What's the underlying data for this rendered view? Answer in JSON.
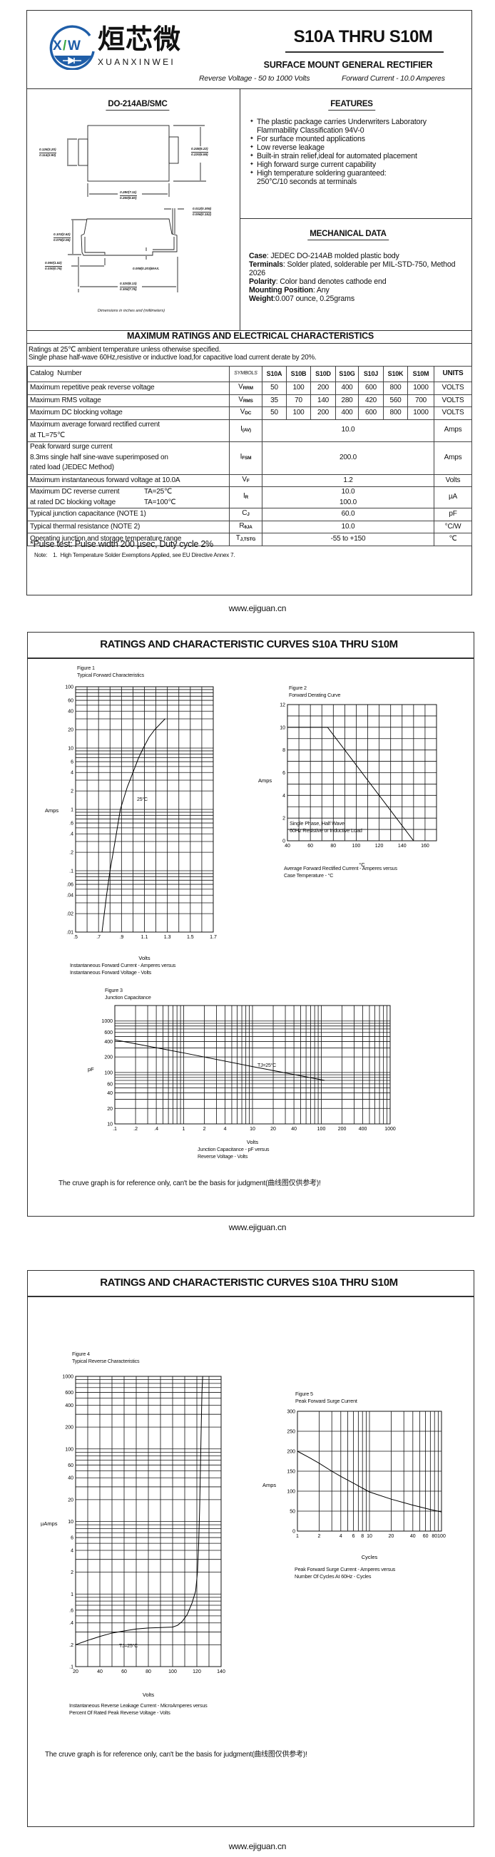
{
  "page1": {
    "logo": {
      "brand_cn": "烜芯微",
      "brand_en": "XUANXINWEI",
      "mark": "XW",
      "colors": {
        "blue": "#1f5ea8",
        "green": "#3aa845"
      }
    },
    "title": "S10A THRU S10M",
    "subtitle": "SURFACE MOUNT GENERAL RECTIFIER",
    "reverse_voltage": "Reverse Voltage - 50 to 1000 Volts",
    "forward_current": "Forward Current - 10.0 Amperes",
    "package": {
      "title": "DO-214AB/SMC",
      "dims": [
        [
          "0.126(3.20)",
          "0.114(2.90)"
        ],
        [
          "0.245(6.22)",
          "0.220(5.59)"
        ],
        [
          "0.280(7.11)",
          "0.260(6.60)"
        ],
        [
          "0.012(0.305)",
          "0.006(0.152)"
        ],
        [
          "0.103(2.62)",
          "0.079(2.06)"
        ],
        [
          "0.060(1.52)",
          "0.030(0.76)"
        ],
        [
          "0.320(8.13)",
          "0.305(7.75)"
        ]
      ],
      "dim_max": "0.008(0.203)MAX.",
      "note": "Dimensions in inches and (millimeters)"
    },
    "features": {
      "title": "FEATURES",
      "items": [
        "The plastic package carries Underwriters Laboratory\nFlammability Classification 94V-0",
        "For surface mounted applications",
        "Low reverse leakage",
        "Built-in strain relief,ideal for automated placement",
        "High forward surge current capability",
        "High temperature soldering guaranteed:\n250°C/10 seconds at terminals"
      ]
    },
    "mechanical": {
      "title": "MECHANICAL DATA",
      "items": [
        {
          "label": "Case",
          "value": ": JEDEC DO-214AB molded plastic body"
        },
        {
          "label": "Terminals",
          "value": ": Solder plated, solderable per MIL-STD-750, Method 2026"
        },
        {
          "label": "Polarity",
          "value": ": Color band denotes cathode end"
        },
        {
          "label": "Mounting Position",
          "value": ": Any"
        },
        {
          "label": "Weight",
          "value": ":0.007 ounce, 0.25grams"
        }
      ]
    },
    "ratings": {
      "title": "MAXIMUM RATINGS AND ELECTRICAL CHARACTERISTICS",
      "notes": [
        "Ratings at 25℃ ambient temperature unless otherwise specified.",
        "Single phase half-wave 60Hz,resistive or inductive load,for capacitive load current derate by 20%."
      ],
      "header": {
        "catalog": "Catalog  Number",
        "symbols": "SYMBOLS",
        "parts": [
          "S10A",
          "S10B",
          "S10D",
          "S10G",
          "S10J",
          "S10K",
          "S10M"
        ],
        "units": "UNITS"
      },
      "rows": [
        {
          "desc": [
            "Maximum repetitive peak reverse voltage"
          ],
          "sym": "V",
          "sub": "RRM",
          "values": [
            "50",
            "100",
            "200",
            "400",
            "600",
            "800",
            "1000"
          ],
          "unit": "VOLTS"
        },
        {
          "desc": [
            "Maximum RMS voltage"
          ],
          "sym": "V",
          "sub": "RMS",
          "values": [
            "35",
            "70",
            "140",
            "280",
            "420",
            "560",
            "700"
          ],
          "unit": "VOLTS"
        },
        {
          "desc": [
            "Maximum DC blocking voltage"
          ],
          "sym": "V",
          "sub": "DC",
          "values": [
            "50",
            "100",
            "200",
            "400",
            "600",
            "800",
            "1000"
          ],
          "unit": "VOLTS"
        },
        {
          "desc": [
            "Maximum average forward rectified current",
            "at TL=75℃"
          ],
          "sym": "I",
          "sub": "(AV)",
          "value": "10.0",
          "unit": "Amps"
        },
        {
          "desc": [
            "Peak forward surge current",
            "8.3ms single half sine-wave superimposed on",
            "rated load (JEDEC Method)"
          ],
          "sym": "I",
          "sub": "FSM",
          "value": "200.0",
          "unit": "Amps"
        },
        {
          "desc": [
            "Maximum instantaneous forward voltage at 10.0A"
          ],
          "sym": "V",
          "sub": "F",
          "value": "1.2",
          "unit": "Volts"
        },
        {
          "desc": [
            "Maximum DC reverse current",
            "at rated DC blocking voltage"
          ],
          "cond": [
            "TA=25℃",
            "TA=100℃"
          ],
          "sym": "I",
          "sub": "R",
          "value": "10.0\n100.0",
          "unit": "µA"
        },
        {
          "desc": [
            "Typical junction capacitance (NOTE 1)"
          ],
          "sym": "C",
          "sub": "J",
          "value": "60.0",
          "unit": "pF"
        },
        {
          "desc": [
            "Typical thermal resistance (NOTE 2)"
          ],
          "sym": "R",
          "sub": "θJA",
          "value": "10.0",
          "unit": "°C/W"
        },
        {
          "desc": [
            "Operating junction and storage temperature range"
          ],
          "sym": "T",
          "sub": "J,TSTG",
          "value": "-55 to +150",
          "unit": "℃"
        }
      ],
      "pulse_note": "*Pulse test: Pulse width 200 µsec, Duty cycle 2%",
      "note": "Note:    1.  High Temperature Solder Exemptions Applied, see EU Directive Annex 7."
    }
  },
  "footer_url": "www.ejiguan.cn",
  "curves_title": "RATINGS AND CHARACTERISTIC CURVES S10A THRU S10M",
  "disclaimer": "The cruve graph is for reference only, can't be the basis for judgment(曲线图仅供参考)!",
  "chart_data": [
    {
      "type": "line",
      "figure": "Figure 1",
      "title": "Typical Forward Characteristics",
      "xlabel": "Volts",
      "ylabel": "Amps",
      "xscale": "linear",
      "yscale": "log",
      "xlim": [
        0.5,
        1.7
      ],
      "ylim": [
        0.01,
        100
      ],
      "grid": true,
      "xticks": [
        ".5",
        ".7",
        ".9",
        "1.1",
        "1.3",
        "1.5",
        "1.7"
      ],
      "yticks": [
        "100",
        "60",
        "40",
        "20",
        "10",
        "6",
        "4",
        "2",
        "1",
        ".6",
        ".4",
        ".2",
        ".1",
        ".06",
        ".04",
        ".02",
        ".01"
      ],
      "series": [
        {
          "x": [
            0.73,
            0.77,
            0.8,
            0.85,
            0.89,
            0.95,
            1.0,
            1.05,
            1.09,
            1.14,
            1.19,
            1.28
          ],
          "y": [
            0.01,
            0.04,
            0.1,
            0.35,
            1,
            2.3,
            4,
            7,
            10,
            15,
            20,
            30
          ]
        }
      ],
      "annotations": [
        "25°C"
      ],
      "caption": [
        "Instantaneous Forward Current - Amperes versus",
        "Instantaneous Forward Voltage - Volts"
      ]
    },
    {
      "type": "line",
      "figure": "Figure 2",
      "title": "Forward Derating Curve",
      "xlabel": "°C",
      "ylabel": "Amps",
      "xscale": "linear",
      "yscale": "linear",
      "xlim": [
        40,
        170
      ],
      "ylim": [
        0,
        12
      ],
      "grid": true,
      "xticks": [
        "40",
        "60",
        "80",
        "100",
        "120",
        "140",
        "160"
      ],
      "yticks": [
        "12",
        "10",
        "8",
        "6",
        "4",
        "2",
        "0"
      ],
      "series": [
        {
          "x": [
            40,
            75,
            150
          ],
          "y": [
            10,
            10,
            0
          ]
        }
      ],
      "annotations": [
        "Single Phase, Half Wave",
        "60Hz Resistive or Inductive Load"
      ],
      "caption": [
        "Average Forward Rectified Current  -  Amperes versus",
        "Case Temperature  - °C"
      ]
    },
    {
      "type": "line",
      "figure": "Figure 3",
      "title": "Junction Capacitance",
      "xlabel": "Volts",
      "ylabel": "pF",
      "xscale": "log",
      "yscale": "log",
      "xlim": [
        0.1,
        1000
      ],
      "ylim": [
        10,
        2000
      ],
      "grid": true,
      "xticks": [
        ".1",
        ".2",
        ".4",
        "1",
        "2",
        "4",
        "10",
        "20",
        "40",
        "100",
        "200",
        "400",
        "1000"
      ],
      "yticks": [
        "1000",
        "600",
        "400",
        "200",
        "100",
        "60",
        "40",
        "20",
        "10"
      ],
      "series": [
        {
          "x": [
            0.1,
            1,
            10,
            112
          ],
          "y": [
            430,
            240,
            130,
            70
          ]
        }
      ],
      "annotations": [
        "TJ=25°C"
      ],
      "caption": [
        "Junction Capacitance - pF versus",
        "Reverse Voltage - Volts"
      ]
    },
    {
      "type": "line",
      "figure": "Figure 4",
      "title": "Typical Reverse Characteristics",
      "xlabel": "Volts",
      "ylabel": "µAmps",
      "xscale": "linear",
      "yscale": "log",
      "xlim": [
        20,
        140
      ],
      "ylim": [
        0.1,
        1000
      ],
      "grid": true,
      "xticks": [
        "20",
        "40",
        "60",
        "80",
        "100",
        "120",
        "140"
      ],
      "yticks": [
        "1000",
        "600",
        "400",
        "200",
        "100",
        "60",
        "40",
        "20",
        "10",
        "6",
        "4",
        "2",
        "1",
        ".6",
        ".4",
        ".2",
        ".1"
      ],
      "series": [
        {
          "x": [
            20,
            30,
            40,
            50,
            60,
            70,
            80,
            90,
            100,
            104,
            108,
            112,
            116,
            119,
            120.5,
            121.5,
            122.3,
            123,
            123.6,
            124.2,
            124.8
          ],
          "y": [
            0.2,
            0.23,
            0.26,
            0.29,
            0.31,
            0.33,
            0.34,
            0.345,
            0.35,
            0.37,
            0.42,
            0.52,
            0.75,
            1.1,
            2,
            5,
            15,
            60,
            200,
            600,
            1000
          ]
        }
      ],
      "annotations": [
        "TJ=25°C"
      ],
      "caption": [
        "Instantaneous Reverse Leakage Current - MicroAmperes versus",
        "Percent Of Rated Peak Reverse Voltage - Volts"
      ]
    },
    {
      "type": "line",
      "figure": "Figure 5",
      "title": "Peak Forward Surge Current",
      "xlabel": "Cycles",
      "ylabel": "Amps",
      "xscale": "log",
      "yscale": "linear",
      "xlim": [
        1,
        100
      ],
      "ylim": [
        0,
        300
      ],
      "grid": true,
      "xticks": [
        "1",
        "2",
        "4",
        "6",
        "8",
        "10",
        "20",
        "40",
        "60",
        "80",
        "100"
      ],
      "yticks": [
        "300",
        "250",
        "200",
        "150",
        "100",
        "50",
        "0"
      ],
      "series": [
        {
          "x": [
            1,
            1.5,
            2,
            3,
            4,
            6,
            10,
            20,
            40,
            70,
            100
          ],
          "y": [
            200,
            183,
            170,
            150,
            137,
            120,
            98,
            80,
            65,
            54,
            48
          ]
        }
      ],
      "annotations": [],
      "caption": [
        "Peak Forward Surge Current - Amperes versus",
        "Number Of Cycles At 60Hz - Cycles"
      ]
    }
  ]
}
